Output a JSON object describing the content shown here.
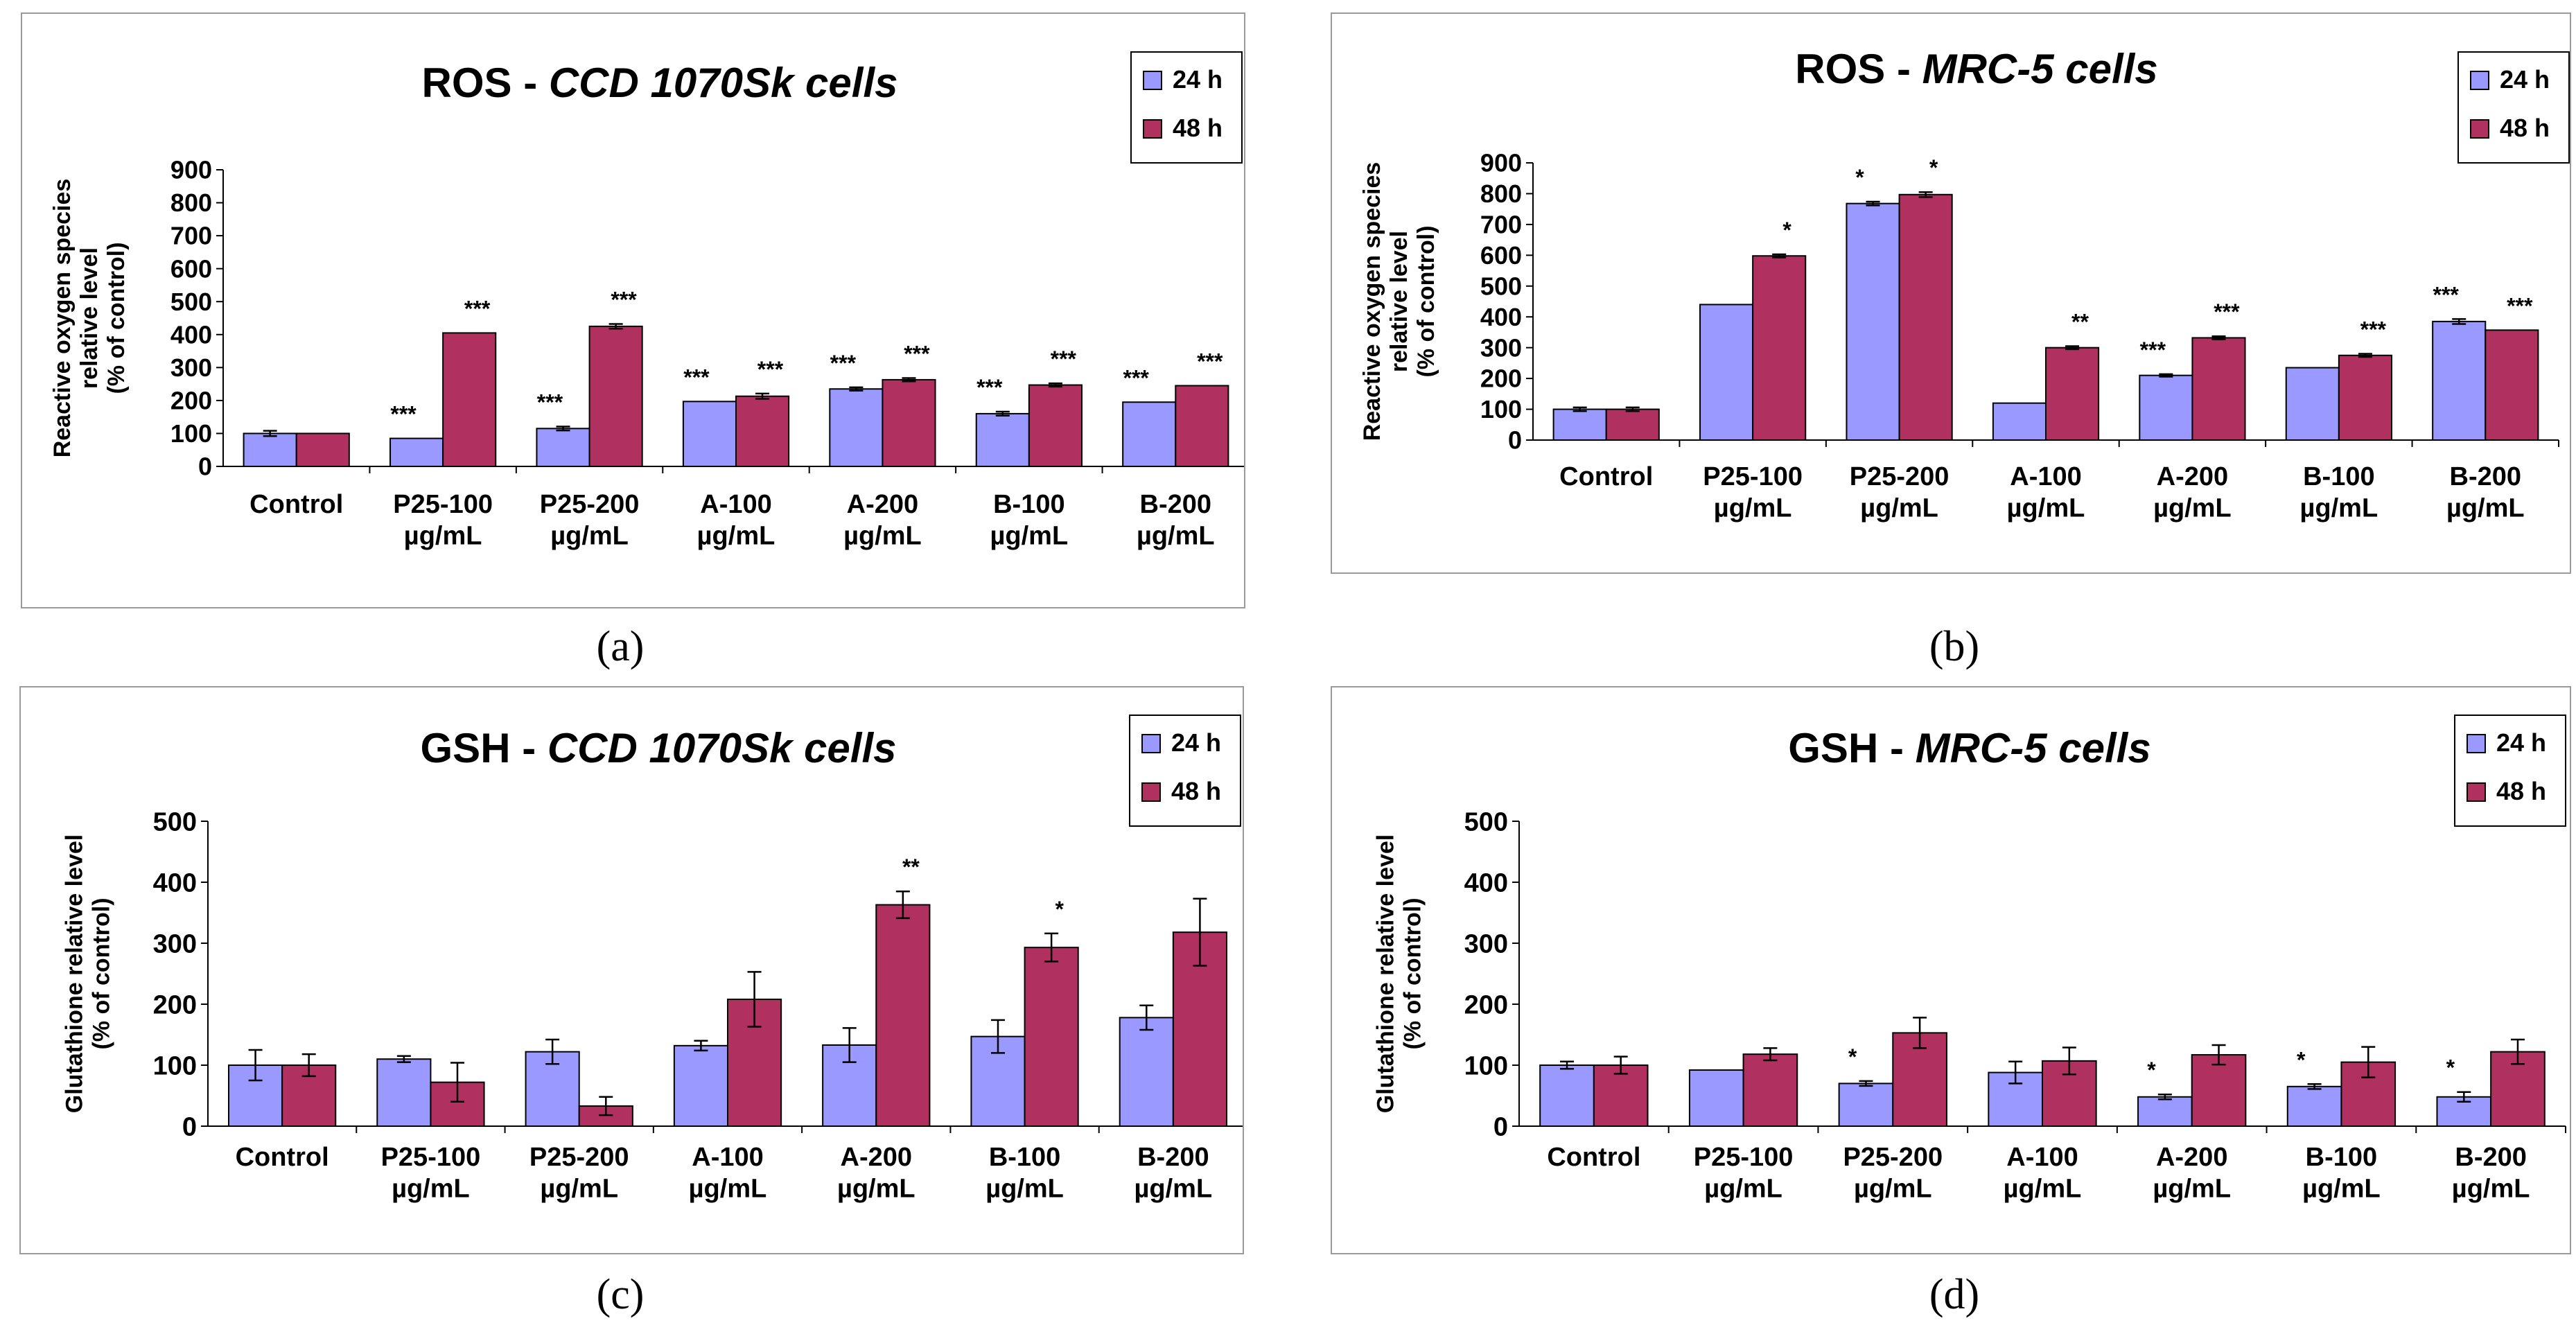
{
  "colors": {
    "h24": "#9999ff",
    "h48": "#b03060",
    "axis": "#000000",
    "frame": "#9a9a9a"
  },
  "panel_labels": [
    "(a)",
    "(b)",
    "(c)",
    "(d)"
  ],
  "chart_data": [
    {
      "type": "bar",
      "title_prefix": "ROS - ",
      "title_italic": "CCD 1070Sk cells",
      "ylabel_lines": [
        "Reactive oxygen species",
        "relative level",
        "(% of control)"
      ],
      "ylim": [
        0,
        900
      ],
      "yticks": [
        "0",
        "100",
        "200",
        "300",
        "400",
        "500",
        "600",
        "700",
        "800",
        "900"
      ],
      "categories": [
        [
          "Control"
        ],
        [
          "P25-100",
          "µg/mL"
        ],
        [
          "P25-200",
          "µg/mL"
        ],
        [
          "A-100",
          "µg/mL"
        ],
        [
          "A-200",
          "µg/mL"
        ],
        [
          "B-100",
          "µg/mL"
        ],
        [
          "B-200",
          "µg/mL"
        ]
      ],
      "legend": [
        "24 h",
        "48 h"
      ],
      "series": [
        {
          "name": "24 h",
          "values": [
            100,
            85,
            115,
            197,
            235,
            160,
            195
          ],
          "errors": [
            8,
            0,
            6,
            0,
            5,
            6,
            0
          ],
          "sig": [
            "",
            "***",
            "***",
            "***",
            "***",
            "***",
            "***"
          ]
        },
        {
          "name": "48 h",
          "values": [
            100,
            405,
            425,
            213,
            263,
            247,
            245
          ],
          "errors": [
            0,
            0,
            7,
            8,
            5,
            5,
            0
          ],
          "sig": [
            "",
            "***",
            "***",
            "***",
            "***",
            "***",
            "***"
          ]
        }
      ]
    },
    {
      "type": "bar",
      "title_prefix": "ROS - ",
      "title_italic": "MRC-5 cells",
      "ylabel_lines": [
        "Reactive oxygen species",
        "relative level",
        "(% of control)"
      ],
      "ylim": [
        0,
        900
      ],
      "yticks": [
        "0",
        "100",
        "200",
        "300",
        "400",
        "500",
        "600",
        "700",
        "800",
        "900"
      ],
      "categories": [
        [
          "Control"
        ],
        [
          "P25-100",
          "µg/mL"
        ],
        [
          "P25-200",
          "µg/mL"
        ],
        [
          "A-100",
          "µg/mL"
        ],
        [
          "A-200",
          "µg/mL"
        ],
        [
          "B-100",
          "µg/mL"
        ],
        [
          "B-200",
          "µg/mL"
        ]
      ],
      "legend": [
        "24 h",
        "48 h"
      ],
      "series": [
        {
          "name": "24 h",
          "values": [
            100,
            440,
            768,
            120,
            210,
            235,
            385
          ],
          "errors": [
            6,
            0,
            6,
            0,
            4,
            0,
            8
          ],
          "sig": [
            "",
            "",
            "*",
            "",
            "***",
            "",
            "***"
          ]
        },
        {
          "name": "48 h",
          "values": [
            100,
            598,
            797,
            300,
            332,
            275,
            357
          ],
          "errors": [
            6,
            5,
            8,
            5,
            5,
            5,
            0
          ],
          "sig": [
            "",
            "*",
            "*",
            "**",
            "***",
            "***",
            "***"
          ]
        }
      ]
    },
    {
      "type": "bar",
      "title_prefix": "GSH - ",
      "title_italic": "CCD 1070Sk cells",
      "ylabel_lines": [
        "Glutathione relative level",
        "(% of control)"
      ],
      "ylim": [
        0,
        500
      ],
      "yticks": [
        "0",
        "100",
        "200",
        "300",
        "400",
        "500"
      ],
      "categories": [
        [
          "Control"
        ],
        [
          "P25-100",
          "µg/mL"
        ],
        [
          "P25-200",
          "µg/mL"
        ],
        [
          "A-100",
          "µg/mL"
        ],
        [
          "A-200",
          "µg/mL"
        ],
        [
          "B-100",
          "µg/mL"
        ],
        [
          "B-200",
          "µg/mL"
        ]
      ],
      "legend": [
        "24 h",
        "48 h"
      ],
      "series": [
        {
          "name": "24 h",
          "values": [
            100,
            110,
            122,
            132,
            133,
            147,
            178
          ],
          "errors": [
            25,
            5,
            20,
            8,
            28,
            27,
            20
          ],
          "sig": [
            "",
            "",
            "",
            "",
            "",
            "",
            ""
          ]
        },
        {
          "name": "48 h",
          "values": [
            100,
            72,
            33,
            208,
            363,
            293,
            318
          ],
          "errors": [
            18,
            32,
            15,
            45,
            22,
            23,
            55
          ],
          "sig": [
            "",
            "",
            "",
            "",
            "**",
            "*",
            ""
          ]
        }
      ]
    },
    {
      "type": "bar",
      "title_prefix": "GSH - ",
      "title_italic": "MRC-5 cells",
      "ylabel_lines": [
        "Glutathione  relative level",
        "(% of control)"
      ],
      "ylim": [
        0,
        500
      ],
      "yticks": [
        "0",
        "100",
        "200",
        "300",
        "400",
        "500"
      ],
      "categories": [
        [
          "Control"
        ],
        [
          "P25-100",
          "µg/mL"
        ],
        [
          "P25-200",
          "µg/mL"
        ],
        [
          "A-100",
          "µg/mL"
        ],
        [
          "A-200",
          "µg/mL"
        ],
        [
          "B-100",
          "µg/mL"
        ],
        [
          "B-200",
          "µg/mL"
        ]
      ],
      "legend": [
        "24 h",
        "48 h"
      ],
      "series": [
        {
          "name": "24 h",
          "values": [
            100,
            92,
            70,
            88,
            48,
            65,
            48
          ],
          "errors": [
            6,
            0,
            4,
            18,
            4,
            4,
            8
          ],
          "sig": [
            "",
            "",
            "*",
            "",
            "*",
            "*",
            "*"
          ]
        },
        {
          "name": "48 h",
          "values": [
            100,
            118,
            153,
            107,
            117,
            105,
            122
          ],
          "errors": [
            14,
            10,
            25,
            22,
            16,
            25,
            20
          ],
          "sig": [
            "",
            "",
            "",
            "",
            "",
            "",
            ""
          ]
        }
      ]
    }
  ]
}
